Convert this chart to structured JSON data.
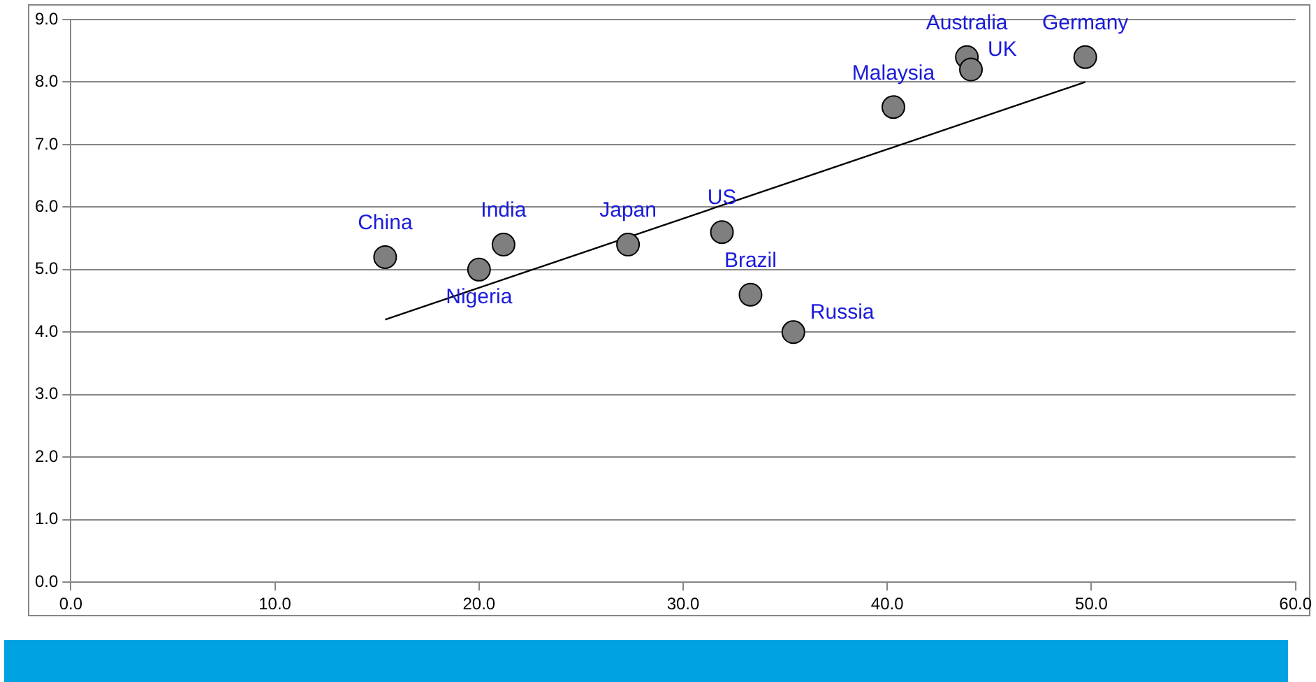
{
  "chart_data": {
    "type": "scatter",
    "xlim": [
      0,
      60
    ],
    "xticks": [
      {
        "value": 0,
        "label": "0.0"
      },
      {
        "value": 10,
        "label": "10.0"
      },
      {
        "value": 20,
        "label": "20.0"
      },
      {
        "value": 30,
        "label": "30.0"
      },
      {
        "value": 40,
        "label": "40.0"
      },
      {
        "value": 50,
        "label": "50.0"
      },
      {
        "value": 60,
        "label": "60.0"
      }
    ],
    "ylim": [
      0,
      9
    ],
    "yticks": [
      {
        "value": 0,
        "label": "0.0"
      },
      {
        "value": 1,
        "label": "1.0"
      },
      {
        "value": 2,
        "label": "2.0"
      },
      {
        "value": 3,
        "label": "3.0"
      },
      {
        "value": 4,
        "label": "4.0"
      },
      {
        "value": 5,
        "label": "5.0"
      },
      {
        "value": 6,
        "label": "6.0"
      },
      {
        "value": 7,
        "label": "7.0"
      },
      {
        "value": 8,
        "label": "8.0"
      },
      {
        "value": 9,
        "label": "9.0"
      }
    ],
    "grid": "y",
    "legend": false,
    "series": [
      {
        "marker": "circle",
        "color": "#7f7f7f",
        "x": [
          15.4,
          20.0,
          21.2,
          27.3,
          31.9,
          33.3,
          35.4,
          40.3,
          43.9,
          44.1,
          49.7
        ],
        "values": [
          5.2,
          5.0,
          5.4,
          5.4,
          5.6,
          4.6,
          4.0,
          7.6,
          8.4,
          8.2,
          8.4
        ],
        "value_labels": [
          "China",
          "Nigeria",
          "India",
          "Japan",
          "US",
          "Brazil",
          "Russia",
          "Malaysia",
          "Australia",
          "UK",
          "Germany"
        ]
      },
      {
        "type": "line",
        "marker": "none",
        "color": "#000000",
        "x": [
          15.4,
          49.7
        ],
        "values": [
          4.2,
          8.0
        ]
      }
    ]
  }
}
